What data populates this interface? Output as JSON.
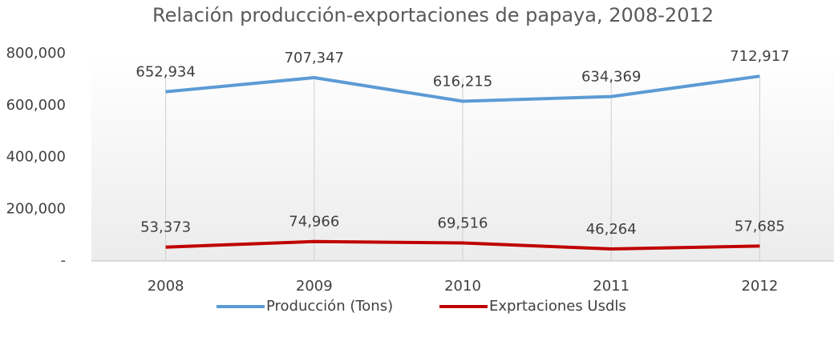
{
  "chart_data": {
    "type": "line",
    "title": "Relación producción-exportaciones de papaya, 2008-2012",
    "categories": [
      "2008",
      "2009",
      "2010",
      "2011",
      "2012"
    ],
    "series": [
      {
        "name": "Producción (Tons)",
        "color": "#5b9bd5",
        "values": [
          652934,
          707347,
          616215,
          634369,
          712917
        ],
        "value_labels": [
          "652,934",
          "707,347",
          "616,215",
          "634,369",
          "712,917"
        ]
      },
      {
        "name": "Exprtaciones Usdls",
        "color": "#c00000",
        "values": [
          53373,
          74966,
          69516,
          46264,
          57685
        ],
        "value_labels": [
          "53,373",
          "74,966",
          "69,516",
          "46,264",
          "57,685"
        ]
      }
    ],
    "ylim": [
      0,
      800000
    ],
    "yticks": [
      {
        "value": 0,
        "label": "-"
      },
      {
        "value": 200000,
        "label": "200,000"
      },
      {
        "value": 400000,
        "label": "400,000"
      },
      {
        "value": 600000,
        "label": "600,000"
      },
      {
        "value": 800000,
        "label": "800,000"
      }
    ],
    "legend": "bottom"
  }
}
